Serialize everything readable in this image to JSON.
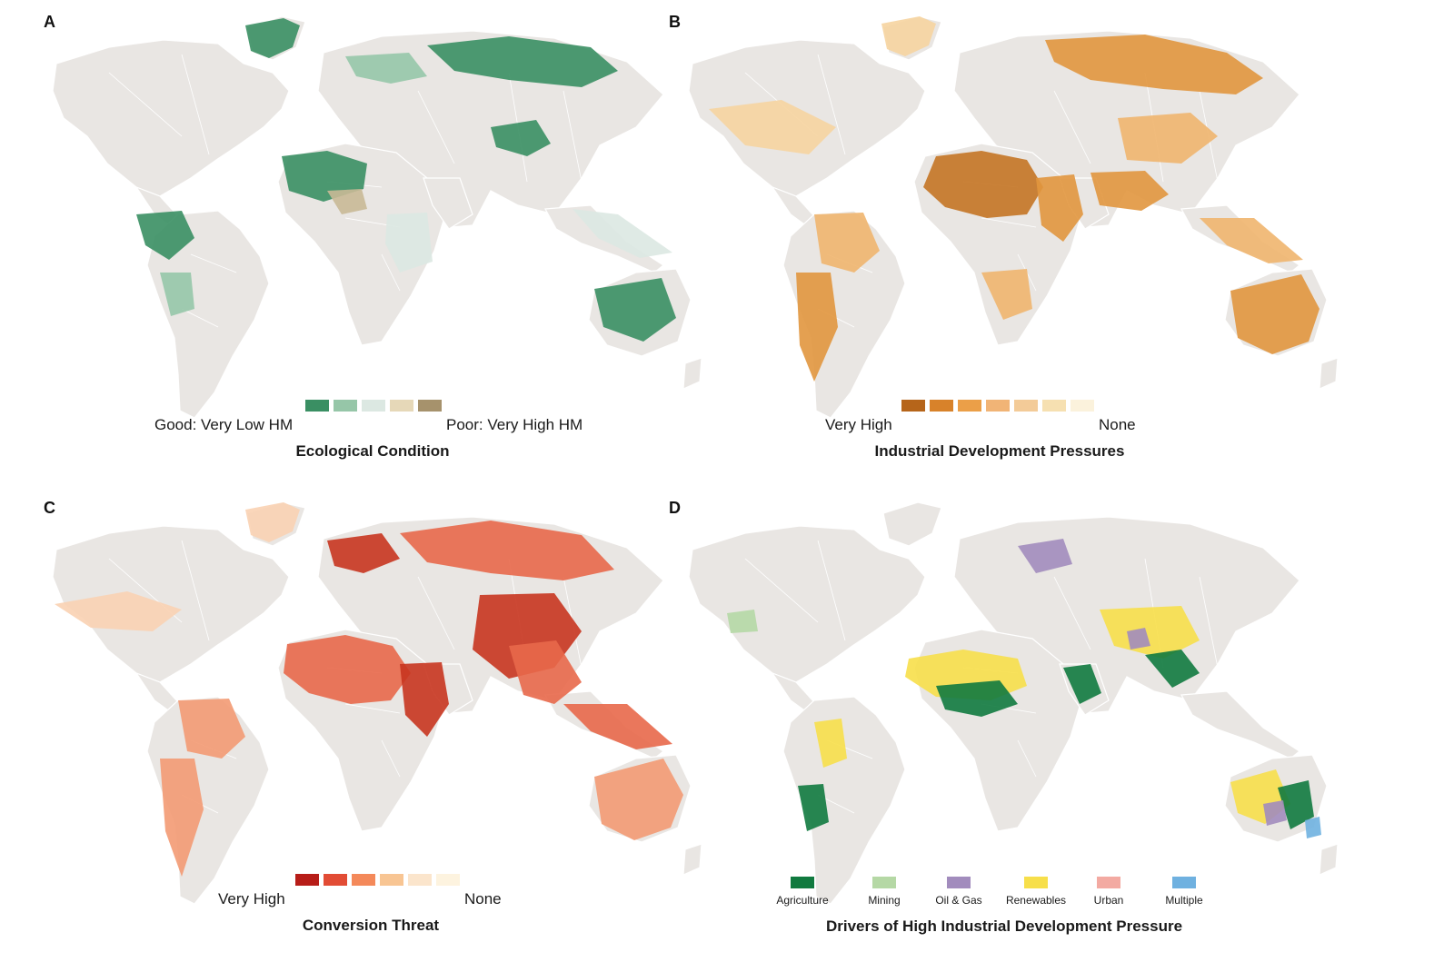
{
  "panels": {
    "a": {
      "letter": "A",
      "title": "Ecological Condition",
      "legend_left": "Good: Very Low HM",
      "legend_right": "Poor: Very High HM",
      "land_color": "#e9e6e3",
      "swatches": [
        "#3a8f63",
        "#96c6a8",
        "#dce8e2",
        "#e6d8b8",
        "#a6926c"
      ],
      "accent_colors": [
        "#3a8f63",
        "#96c6a8",
        "#dce8e2",
        "#c9b996"
      ]
    },
    "b": {
      "letter": "B",
      "title": "Industrial Development Pressures",
      "legend_left": "Very High",
      "legend_right": "None",
      "land_color": "#e9e6e3",
      "swatches": [
        "#b6651a",
        "#d8822a",
        "#eb9f48",
        "#f1b476",
        "#f3cb98",
        "#f6e0b1",
        "#fbf2dc"
      ],
      "accent_colors": [
        "#c47424",
        "#e1963e",
        "#f0b56e",
        "#f6d4a0"
      ]
    },
    "c": {
      "letter": "C",
      "title": "Conversion Threat",
      "legend_left": "Very High",
      "legend_right": "None",
      "land_color": "#e9e6e3",
      "swatches": [
        "#b71d18",
        "#e24c35",
        "#f4895a",
        "#f8c593",
        "#fbe5cc",
        "#fdf3df"
      ],
      "accent_colors": [
        "#c8351f",
        "#e8684a",
        "#f39a73",
        "#f9d2b2"
      ]
    },
    "d": {
      "letter": "D",
      "title": "Drivers of High Industrial Development Pressure",
      "land_color": "#e9e6e3",
      "categories": [
        {
          "label": "Agriculture",
          "color": "#117a3f"
        },
        {
          "label": "Mining",
          "color": "#b5d8a5"
        },
        {
          "label": "Oil & Gas",
          "color": "#a28cbd"
        },
        {
          "label": "Renewables",
          "color": "#f7df4a"
        },
        {
          "label": "Urban",
          "color": "#f3aaa2"
        },
        {
          "label": "Multiple",
          "color": "#6fb1e0"
        }
      ],
      "accent_colors": [
        "#f7df4a",
        "#117a3f",
        "#a28cbd",
        "#b5d8a5"
      ]
    }
  }
}
